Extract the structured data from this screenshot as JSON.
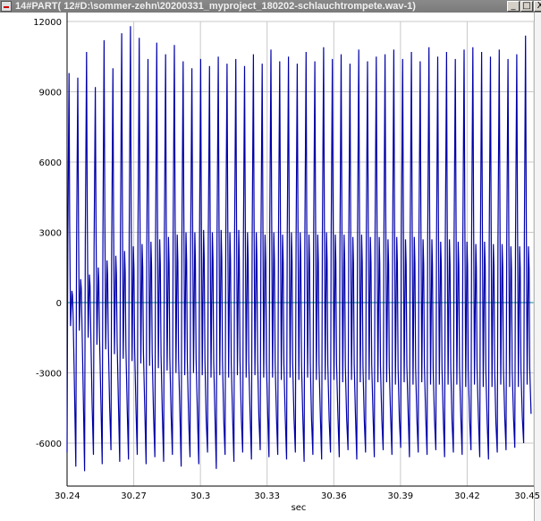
{
  "window": {
    "title": "14#PART( 12#D:\\sommer-zehn\\20200331_myproject_180202-schlauchtrompete.wav-1)",
    "minimize_label": "_",
    "restore_label": "□",
    "close_label": "X"
  },
  "chart_data": {
    "type": "line",
    "title": "",
    "xlabel": "sec",
    "ylabel": "",
    "xlim": [
      30.24,
      30.45
    ],
    "ylim": [
      -7200,
      12000
    ],
    "x_ticks": [
      "30.24",
      "30.27",
      "30.3",
      "30.33",
      "30.36",
      "30.39",
      "30.42",
      "30.45"
    ],
    "y_ticks": [
      "12000",
      "9000",
      "6000",
      "3000",
      "0",
      "-3000",
      "-6000"
    ],
    "grid": true,
    "series": [
      {
        "name": "",
        "color": "#0000a8",
        "x_start": 30.24,
        "x_end": 30.45,
        "period_sec": 0.00395,
        "peak_values": [
          9800,
          9600,
          10700,
          9200,
          11200,
          10000,
          11500,
          11800,
          11300,
          10400,
          11100,
          10600,
          11000,
          10300,
          10000,
          10400,
          10100,
          10500,
          10200,
          10400,
          10100,
          10600,
          10200,
          10800,
          10300,
          10500,
          10200,
          10700,
          10300,
          10900,
          10400,
          10600,
          10200,
          10800,
          10300,
          10500,
          10600,
          10800,
          10400,
          10700,
          10300,
          10900,
          10500,
          10700,
          10400,
          10800,
          10900,
          10700,
          10500,
          10800,
          10400,
          10600,
          11400
        ],
        "trough_values": [
          -6400,
          -7000,
          -7200,
          -6500,
          -6900,
          -6300,
          -6800,
          -6700,
          -6500,
          -6900,
          -6600,
          -6800,
          -6500,
          -7000,
          -6600,
          -6900,
          -6400,
          -7100,
          -6500,
          -6800,
          -6400,
          -6700,
          -6300,
          -6600,
          -6500,
          -6700,
          -6400,
          -6800,
          -6500,
          -6700,
          -6400,
          -6600,
          -6300,
          -6700,
          -6400,
          -6600,
          -6300,
          -6500,
          -6200,
          -6600,
          -6400,
          -6500,
          -6300,
          -6600,
          -6400,
          -6500,
          -6300,
          -6600,
          -6700,
          -6400,
          -6300,
          -6200,
          -6000
        ],
        "secondary_peak_values": [
          500,
          1000,
          1200,
          1500,
          1800,
          2000,
          2200,
          2400,
          2500,
          2600,
          2700,
          2800,
          2900,
          3000,
          3000,
          3100,
          3000,
          3100,
          3000,
          3100,
          3000,
          3000,
          2900,
          3000,
          2900,
          3000,
          3000,
          2900,
          2900,
          3000,
          2900,
          2900,
          2800,
          2900,
          2800,
          2800,
          2700,
          2800,
          2700,
          2800,
          2700,
          2700,
          2600,
          2700,
          2600,
          2600,
          2500,
          2600,
          2500,
          2500,
          2400,
          2400,
          2400
        ],
        "secondary_trough_values": [
          -1000,
          -1200,
          -1500,
          -1800,
          -2000,
          -2200,
          -2400,
          -2500,
          -2600,
          -2700,
          -2800,
          -2900,
          -3000,
          -3100,
          -3000,
          -3100,
          -3200,
          -3100,
          -3200,
          -3100,
          -3200,
          -3100,
          -3200,
          -3200,
          -3300,
          -3200,
          -3300,
          -3200,
          -3300,
          -3300,
          -3300,
          -3400,
          -3300,
          -3400,
          -3300,
          -3400,
          -3400,
          -3500,
          -3400,
          -3500,
          -3400,
          -3500,
          -3500,
          -3500,
          -3500,
          -3600,
          -3500,
          -3600,
          -3600,
          -3500,
          -3600,
          -3600,
          -3500
        ]
      }
    ],
    "zero_line_color": "#008080"
  }
}
